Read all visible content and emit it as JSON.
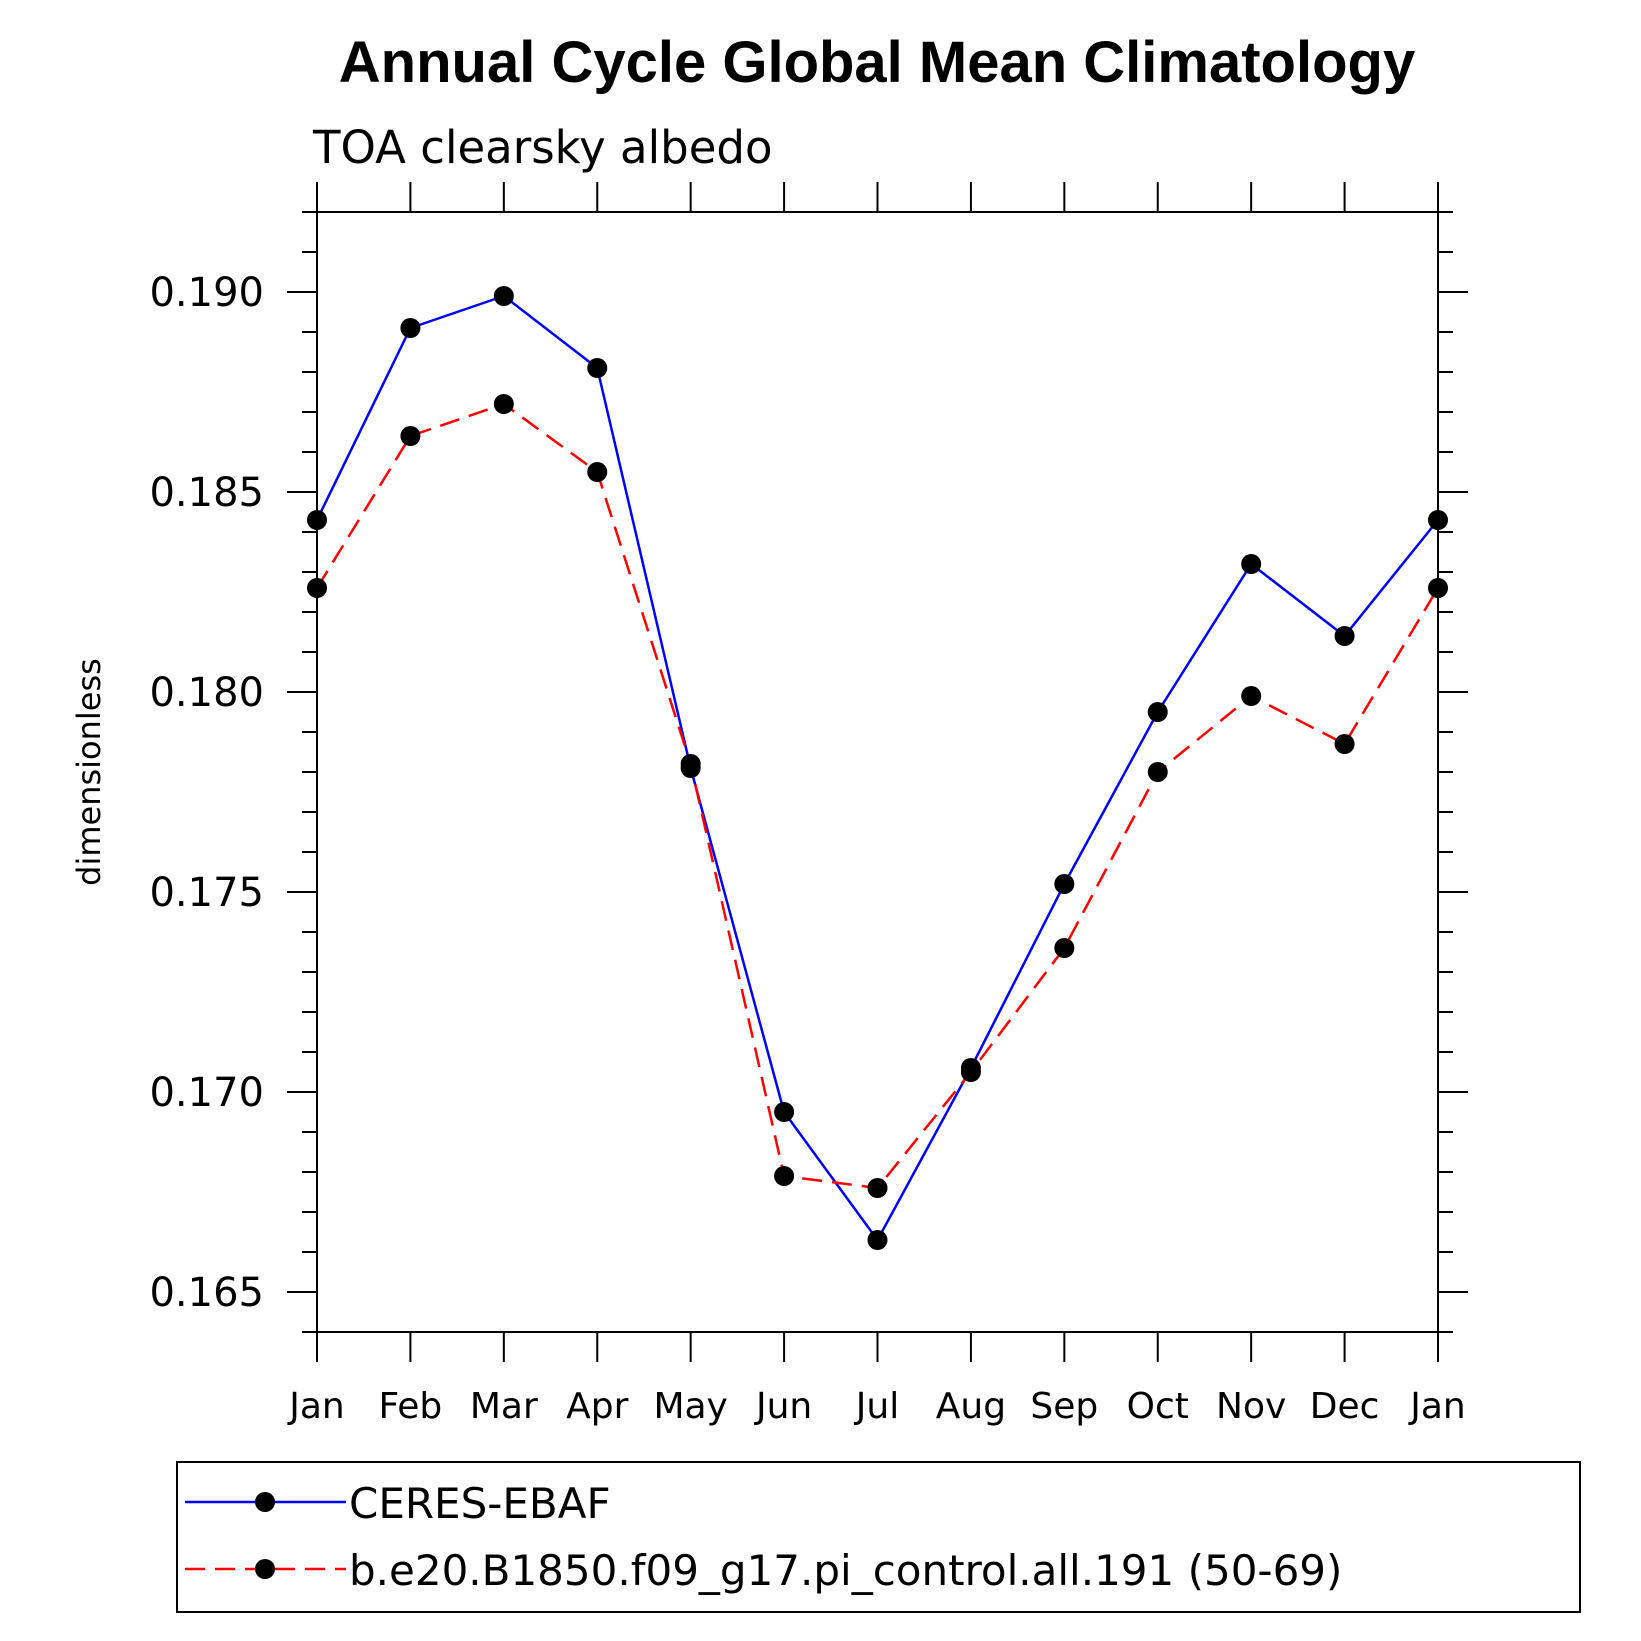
{
  "chart_data": {
    "type": "line",
    "title": "Annual Cycle Global Mean Climatology",
    "subtitle": "TOA clearsky albedo",
    "xlabel": "",
    "ylabel": "dimensionless",
    "categories": [
      "Jan",
      "Feb",
      "Mar",
      "Apr",
      "May",
      "Jun",
      "Jul",
      "Aug",
      "Sep",
      "Oct",
      "Nov",
      "Dec",
      "Jan"
    ],
    "ylim": [
      0.164,
      0.192
    ],
    "yticks": [
      0.165,
      0.17,
      0.175,
      0.18,
      0.185,
      0.19
    ],
    "ytick_labels": [
      "0.165",
      "0.170",
      "0.175",
      "0.180",
      "0.185",
      "0.190"
    ],
    "grid": false,
    "legend_position": "bottom",
    "series": [
      {
        "name": "CERES-EBAF",
        "color": "#0000ff",
        "dash": "solid",
        "marker_color": "#000000",
        "values": [
          0.1843,
          0.1891,
          0.1899,
          0.1881,
          0.1781,
          0.1695,
          0.1663,
          0.1706,
          0.1752,
          0.1795,
          0.1832,
          0.1814,
          0.1843
        ]
      },
      {
        "name": "b.e20.B1850.f09_g17.pi_control.all.191 (50-69)",
        "color": "#ff0000",
        "dash": "dashed",
        "marker_color": "#000000",
        "values": [
          0.1826,
          0.1864,
          0.1872,
          0.1855,
          0.1782,
          0.1679,
          0.1676,
          0.1705,
          0.1736,
          0.178,
          0.1799,
          0.1787,
          0.1826
        ]
      }
    ]
  }
}
